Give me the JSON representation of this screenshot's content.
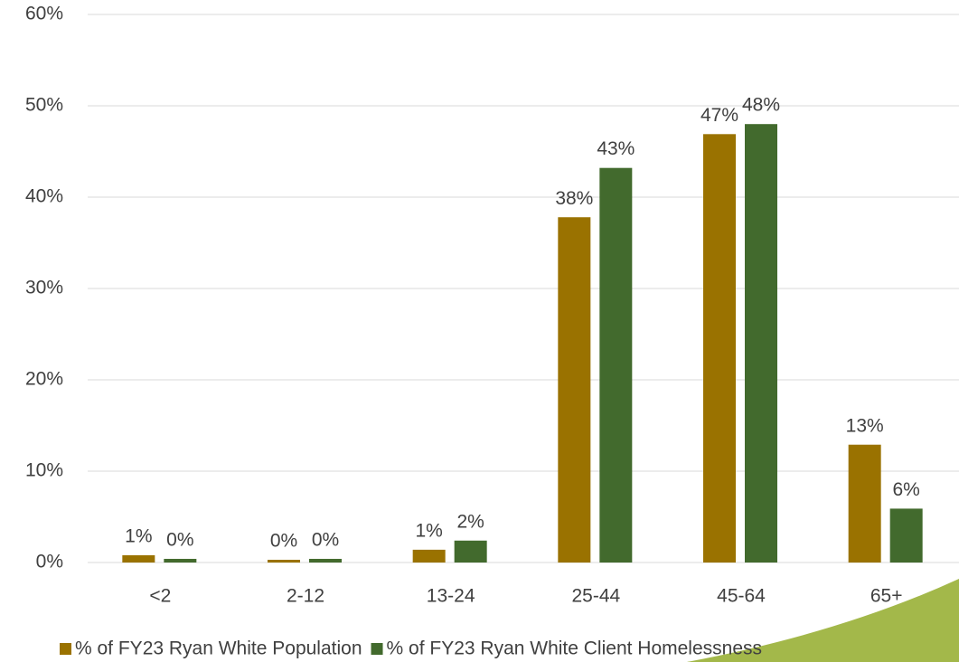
{
  "chart_data": {
    "type": "bar",
    "categories": [
      "<2",
      "2-12",
      "13-24",
      "25-44",
      "45-64",
      "65+"
    ],
    "series": [
      {
        "name": "% of FY23 Ryan White Population",
        "color": "#9a7200",
        "values": [
          0.8,
          0.3,
          1.4,
          37.8,
          46.9,
          12.9
        ],
        "value_labels": [
          "1%",
          "0%",
          "1%",
          "38%",
          "47%",
          "13%"
        ]
      },
      {
        "name": "% of FY23 Ryan White Client Homelessness",
        "color": "#426a2d",
        "values": [
          0.4,
          0.4,
          2.4,
          43.2,
          48.0,
          5.9
        ],
        "value_labels": [
          "0%",
          "0%",
          "2%",
          "43%",
          "48%",
          "6%"
        ]
      }
    ],
    "ylim": [
      0,
      60
    ],
    "yticks": [
      {
        "value": 0,
        "label": "0%"
      },
      {
        "value": 10,
        "label": "10%"
      },
      {
        "value": 20,
        "label": "20%"
      },
      {
        "value": 30,
        "label": "30%"
      },
      {
        "value": 40,
        "label": "40%"
      },
      {
        "value": 50,
        "label": "50%"
      },
      {
        "value": 60,
        "label": "60%"
      }
    ],
    "grid": true
  }
}
